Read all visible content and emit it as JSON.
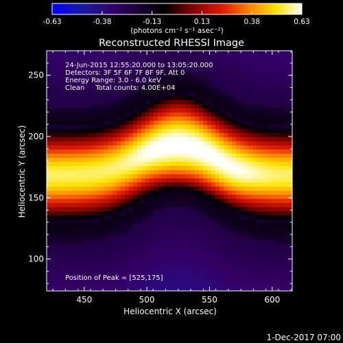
{
  "chart_data": {
    "type": "heatmap",
    "title": "Reconstructed RHESSI Image",
    "xlabel": "Heliocentric X (arcsec)",
    "ylabel": "Heliocentric Y (arcsec)",
    "xlim": [
      420,
      616
    ],
    "ylim": [
      74,
      270
    ],
    "x_ticks": [
      450,
      500,
      550,
      600
    ],
    "y_ticks": [
      100,
      150,
      200,
      250
    ],
    "colorbar": {
      "range": [
        -0.63,
        0.63
      ],
      "ticks": [
        "-0.63",
        "-0.38",
        "-0.13",
        "0.13",
        "0.38",
        "0.63"
      ],
      "unit_label": "(photons cm⁻² s⁻¹ asec⁻²)",
      "colormap": [
        "#0000ff",
        "#1a1aa6",
        "#330066",
        "#000000",
        "#7a0000",
        "#e01a00",
        "#ff8c00",
        "#ffe400",
        "#ffffff"
      ]
    },
    "peak": [
      525,
      175
    ],
    "info_lines": [
      "24-Jun-2015 12:55:20.000 to 13:05:20.000",
      "Detectors: 3F 5F 6F 7F 8F 9F, Att 0",
      "Energy Range: 3.0 - 6.0 keV",
      "Clean     Total counts: 4.00E+04"
    ],
    "peak_label": "Position of Peak = [525,175]",
    "footer_date": "1-Dec-2017 07:00"
  }
}
